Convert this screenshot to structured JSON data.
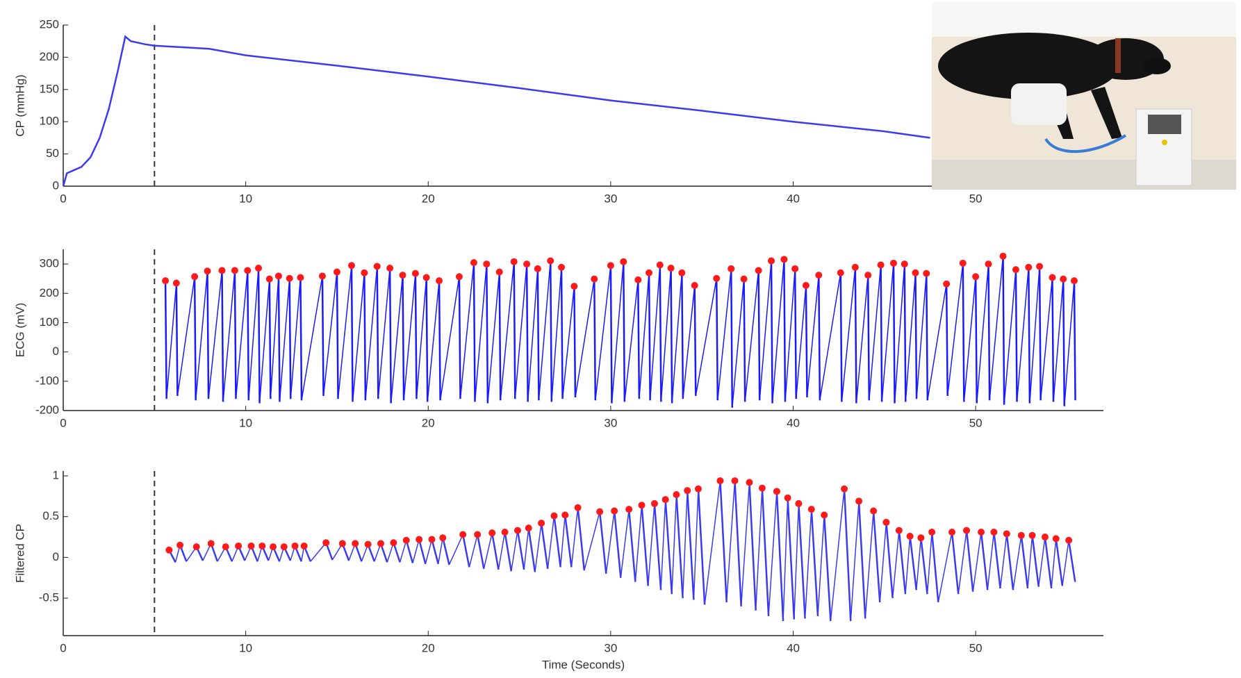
{
  "chart_data": [
    {
      "type": "line",
      "ylabel": "CP (mmHg)",
      "color": "#3a3af2",
      "x": [
        0,
        0.2,
        0.6,
        1,
        1.5,
        2,
        2.5,
        3,
        3.4,
        3.7,
        4.5,
        5,
        8,
        10,
        15,
        20,
        25,
        30,
        35,
        40,
        45,
        47.5
      ],
      "values": [
        0,
        20,
        25,
        30,
        45,
        75,
        120,
        180,
        232,
        225,
        220,
        218,
        213,
        203,
        187,
        170,
        152,
        133,
        117,
        100,
        85,
        75
      ],
      "xlim": [
        0,
        57
      ],
      "ylim": [
        0,
        250
      ],
      "xticks": [
        0,
        10,
        20,
        30,
        40,
        50
      ],
      "yticks": [
        0,
        50,
        100,
        150,
        200,
        250
      ],
      "vline": 5
    },
    {
      "type": "spike",
      "ylabel": "ECG (mV)",
      "color": "#1a1aff",
      "peak_color": "#ff1a1a",
      "x": [
        5.6,
        6.2,
        7.2,
        7.9,
        8.7,
        9.4,
        10.1,
        10.7,
        11.3,
        11.8,
        12.4,
        13.0,
        14.2,
        15.0,
        15.8,
        16.5,
        17.2,
        17.9,
        18.6,
        19.3,
        19.9,
        20.6,
        21.7,
        22.5,
        23.2,
        23.9,
        24.7,
        25.4,
        26.0,
        26.7,
        27.3,
        28.0,
        29.1,
        30.0,
        30.7,
        31.5,
        32.1,
        32.7,
        33.3,
        33.9,
        34.6,
        35.8,
        36.6,
        37.3,
        38.1,
        38.8,
        39.5,
        40.1,
        40.7,
        41.4,
        42.6,
        43.4,
        44.1,
        44.8,
        45.5,
        46.1,
        46.7,
        47.3,
        48.4,
        49.3,
        50.0,
        50.7,
        51.5,
        52.2,
        52.9,
        53.5,
        54.2,
        54.8,
        55.4
      ],
      "values": [
        243,
        235,
        257,
        276,
        278,
        278,
        278,
        286,
        249,
        259,
        251,
        254,
        259,
        273,
        295,
        270,
        292,
        286,
        262,
        268,
        254,
        243,
        257,
        305,
        300,
        273,
        308,
        300,
        284,
        311,
        289,
        224,
        249,
        295,
        308,
        246,
        270,
        297,
        286,
        270,
        227,
        251,
        284,
        249,
        278,
        311,
        316,
        284,
        227,
        262,
        270,
        289,
        262,
        297,
        303,
        300,
        270,
        268,
        232,
        303,
        257,
        300,
        327,
        281,
        289,
        292,
        254,
        249,
        243
      ],
      "troughs": [
        -160,
        -150,
        -165,
        -160,
        -170,
        -160,
        -165,
        -175,
        -160,
        -170,
        -160,
        -165,
        -150,
        -160,
        -170,
        -165,
        -160,
        -175,
        -165,
        -160,
        -170,
        -165,
        -160,
        -170,
        -175,
        -165,
        -160,
        -170,
        -165,
        -170,
        -160,
        -155,
        -165,
        -175,
        -170,
        -160,
        -165,
        -170,
        -175,
        -160,
        -150,
        -165,
        -190,
        -170,
        -165,
        -175,
        -170,
        -160,
        -155,
        -165,
        -170,
        -175,
        -165,
        -170,
        -175,
        -170,
        -160,
        -165,
        -150,
        -170,
        -175,
        -165,
        -180,
        -170,
        -175,
        -165,
        -170,
        -185,
        -165
      ],
      "xlim": [
        0,
        57
      ],
      "ylim": [
        -200,
        350
      ],
      "xticks": [
        0,
        10,
        20,
        30,
        40,
        50
      ],
      "yticks": [
        -200,
        -100,
        0,
        100,
        200,
        300
      ],
      "vline": 5
    },
    {
      "type": "spike",
      "ylabel": "Filtered CP",
      "xlabel": "Time (Seconds)",
      "color": "#3a3af2",
      "peak_color": "#ff1a1a",
      "x": [
        5.8,
        6.4,
        7.3,
        8.1,
        8.9,
        9.6,
        10.3,
        10.9,
        11.5,
        12.1,
        12.7,
        13.2,
        14.4,
        15.3,
        16.0,
        16.7,
        17.4,
        18.1,
        18.8,
        19.5,
        20.2,
        20.8,
        21.9,
        22.7,
        23.5,
        24.2,
        24.9,
        25.5,
        26.2,
        26.9,
        27.5,
        28.2,
        29.4,
        30.2,
        31.0,
        31.7,
        32.4,
        33.0,
        33.6,
        34.2,
        34.8,
        36.0,
        36.8,
        37.6,
        38.3,
        39.1,
        39.7,
        40.3,
        41.0,
        41.7,
        42.8,
        43.6,
        44.4,
        45.1,
        45.8,
        46.4,
        47.0,
        47.6,
        48.7,
        49.5,
        50.3,
        51.0,
        51.7,
        52.5,
        53.1,
        53.8,
        54.4,
        55.1
      ],
      "values": [
        0.09,
        0.15,
        0.13,
        0.17,
        0.13,
        0.14,
        0.14,
        0.14,
        0.13,
        0.13,
        0.14,
        0.14,
        0.18,
        0.17,
        0.17,
        0.16,
        0.17,
        0.18,
        0.21,
        0.22,
        0.22,
        0.24,
        0.28,
        0.28,
        0.3,
        0.31,
        0.33,
        0.36,
        0.42,
        0.51,
        0.52,
        0.61,
        0.56,
        0.57,
        0.59,
        0.64,
        0.66,
        0.71,
        0.77,
        0.82,
        0.84,
        0.94,
        0.94,
        0.92,
        0.85,
        0.81,
        0.73,
        0.66,
        0.59,
        0.52,
        0.84,
        0.69,
        0.57,
        0.43,
        0.33,
        0.26,
        0.24,
        0.31,
        0.31,
        0.33,
        0.31,
        0.31,
        0.29,
        0.27,
        0.27,
        0.25,
        0.23,
        0.21
      ],
      "troughs": [
        -0.06,
        -0.05,
        -0.04,
        -0.05,
        -0.05,
        -0.04,
        -0.05,
        -0.04,
        -0.05,
        -0.04,
        -0.05,
        -0.05,
        -0.03,
        -0.04,
        -0.05,
        -0.05,
        -0.06,
        -0.06,
        -0.07,
        -0.08,
        -0.08,
        -0.09,
        -0.12,
        -0.14,
        -0.15,
        -0.17,
        -0.15,
        -0.18,
        -0.14,
        -0.12,
        -0.12,
        -0.16,
        -0.2,
        -0.25,
        -0.3,
        -0.35,
        -0.4,
        -0.45,
        -0.5,
        -0.52,
        -0.58,
        -0.55,
        -0.6,
        -0.65,
        -0.72,
        -0.78,
        -0.76,
        -0.75,
        -0.72,
        -0.78,
        -0.78,
        -0.75,
        -0.55,
        -0.5,
        -0.45,
        -0.4,
        -0.45,
        -0.55,
        -0.45,
        -0.42,
        -0.4,
        -0.38,
        -0.4,
        -0.38,
        -0.36,
        -0.38,
        -0.35,
        -0.3
      ],
      "xlim": [
        0,
        57
      ],
      "ylim": [
        -0.96,
        1.06
      ],
      "xticks": [
        0,
        10,
        20,
        30,
        40,
        50
      ],
      "yticks": [
        -0.5,
        0,
        0.5,
        1
      ],
      "vline": 5
    }
  ]
}
